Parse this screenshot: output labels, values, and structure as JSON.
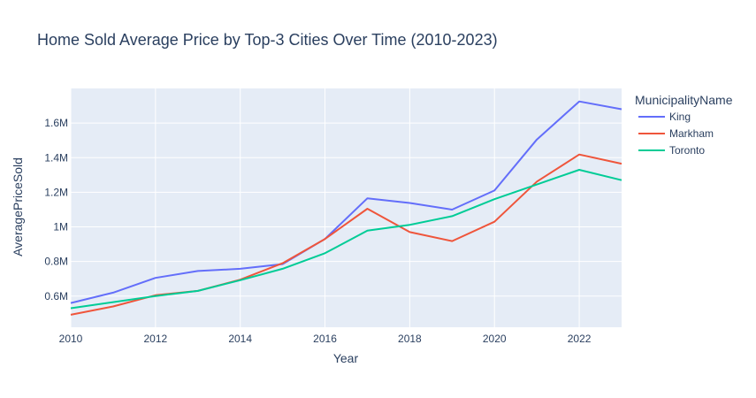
{
  "chart_data": {
    "type": "line",
    "title": "Home Sold Average Price by Top-3 Cities Over Time (2010-2023)",
    "xlabel": "Year",
    "ylabel": "AveragePriceSold",
    "xlim": [
      2010,
      2023
    ],
    "ylim": [
      420000,
      1800000
    ],
    "x_ticks": [
      2010,
      2012,
      2014,
      2016,
      2018,
      2020,
      2022
    ],
    "y_ticks": [
      {
        "value": 600000,
        "label": "0.6M"
      },
      {
        "value": 800000,
        "label": "0.8M"
      },
      {
        "value": 1000000,
        "label": "1M"
      },
      {
        "value": 1200000,
        "label": "1.2M"
      },
      {
        "value": 1400000,
        "label": "1.4M"
      },
      {
        "value": 1600000,
        "label": "1.6M"
      }
    ],
    "grid": true,
    "legend_title": "MunicipalityName",
    "legend_position": "top-right-outside",
    "x": [
      2010,
      2011,
      2012,
      2013,
      2014,
      2015,
      2016,
      2017,
      2018,
      2019,
      2020,
      2021,
      2022,
      2023
    ],
    "series": [
      {
        "name": "King",
        "color": "#636efa",
        "values": [
          560000,
          620000,
          705000,
          745000,
          758000,
          785000,
          930000,
          1165000,
          1138000,
          1100000,
          1210000,
          1505000,
          1725000,
          1680000
        ]
      },
      {
        "name": "Markham",
        "color": "#ef553b",
        "values": [
          492000,
          540000,
          605000,
          630000,
          695000,
          790000,
          930000,
          1105000,
          970000,
          918000,
          1030000,
          1262000,
          1418000,
          1365000
        ]
      },
      {
        "name": "Toronto",
        "color": "#00cc96",
        "values": [
          530000,
          565000,
          600000,
          630000,
          692000,
          758000,
          848000,
          978000,
          1012000,
          1062000,
          1160000,
          1245000,
          1330000,
          1270000
        ]
      }
    ]
  }
}
